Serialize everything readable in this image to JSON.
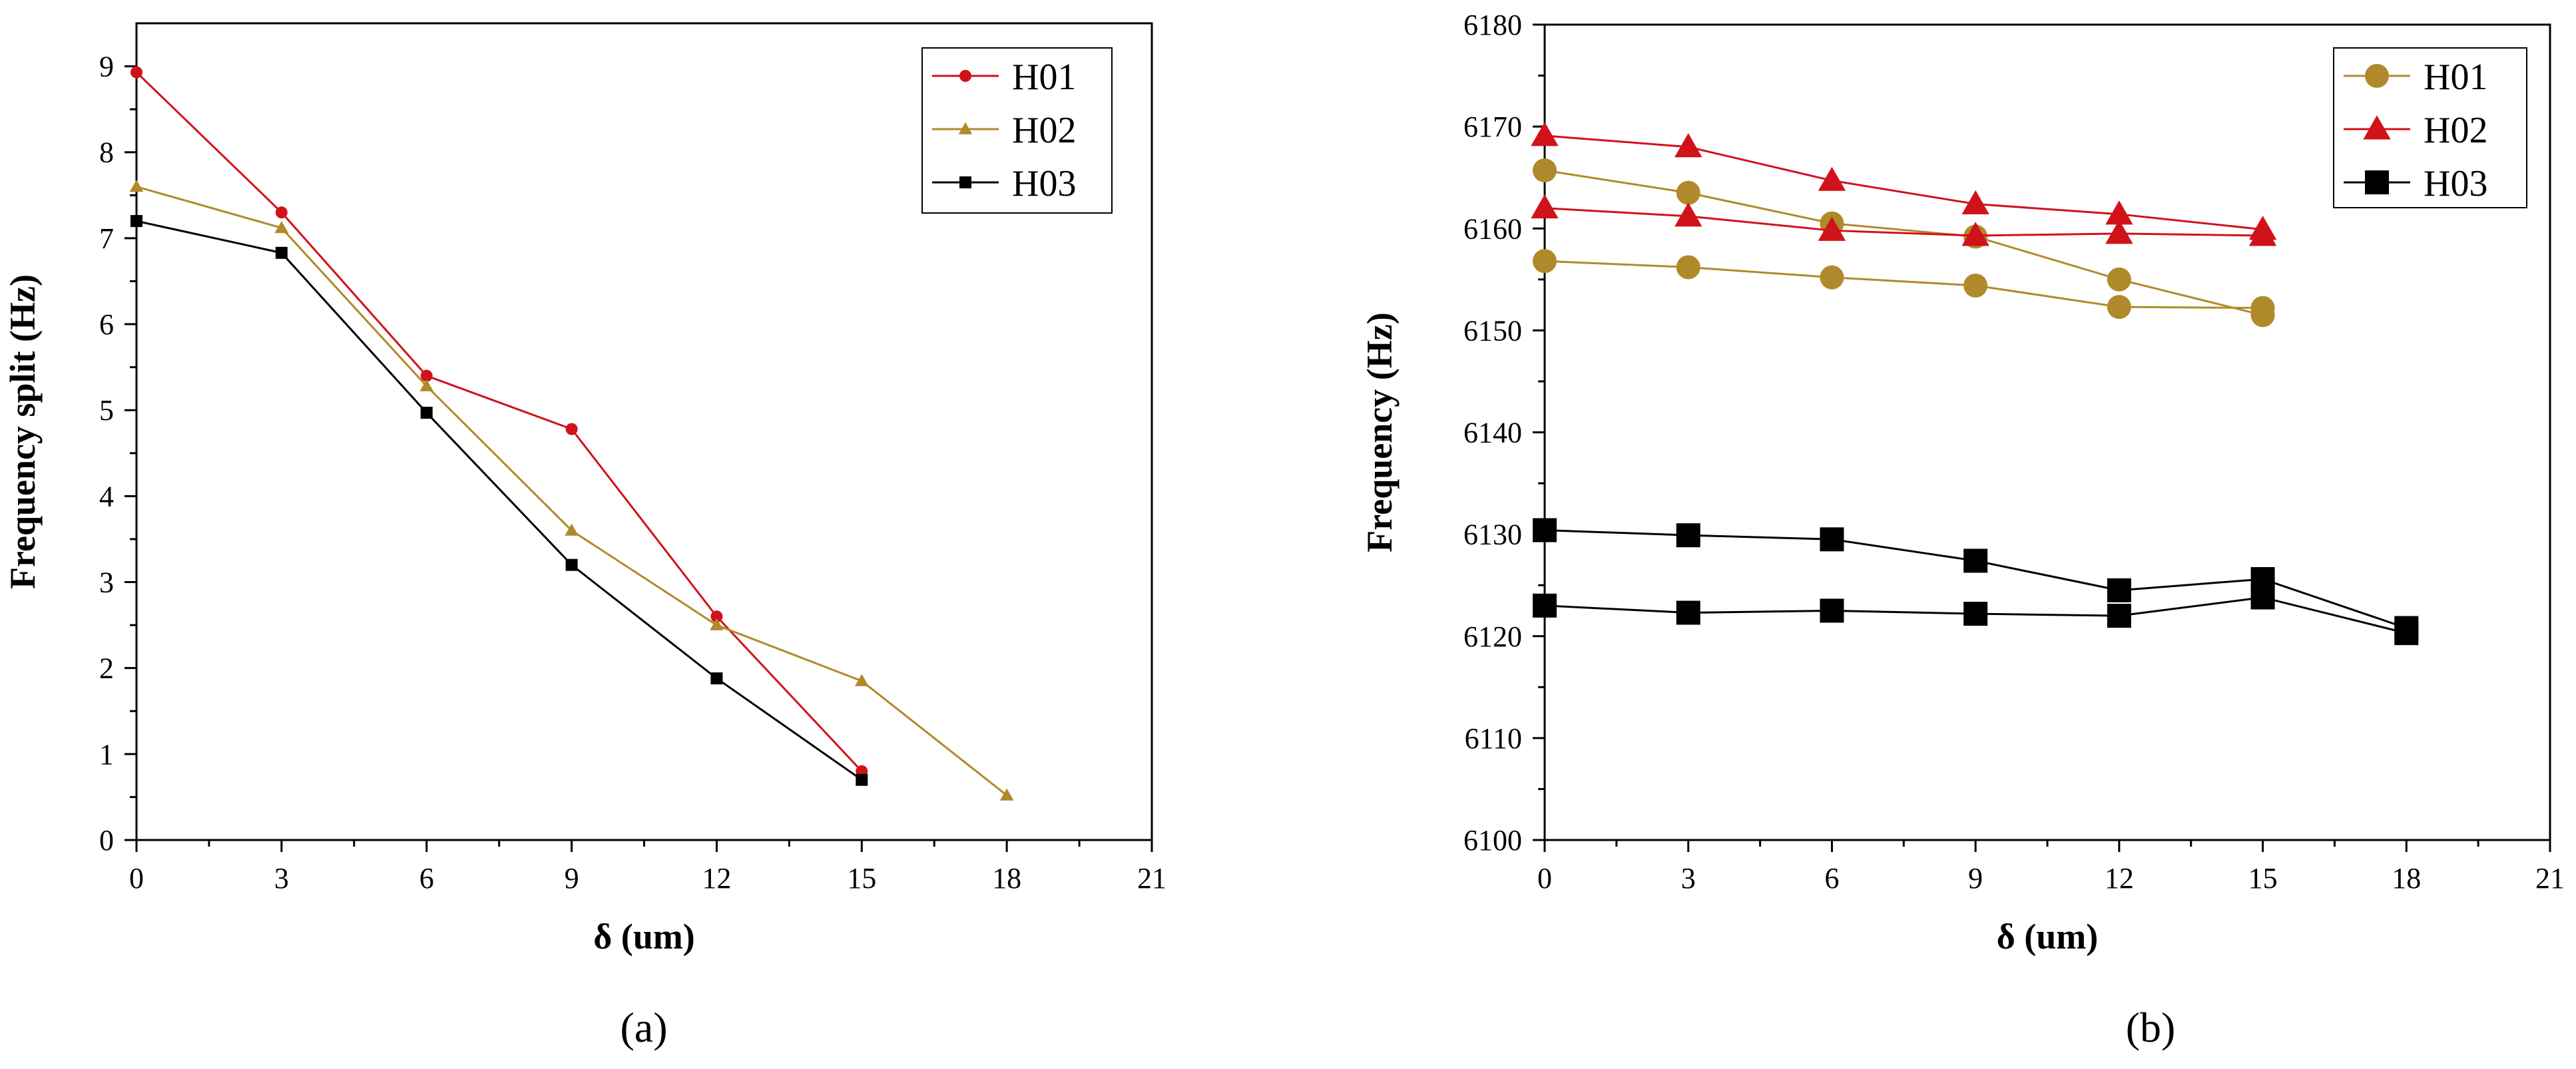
{
  "chart_data": [
    {
      "type": "line",
      "panel_label": "(a)",
      "xlabel": "δ  (um)",
      "ylabel": "Frequency split (Hz)",
      "xlim": [
        0,
        21
      ],
      "ylim": [
        0,
        9.5
      ],
      "xticks": [
        0,
        3,
        6,
        9,
        12,
        15,
        18,
        21
      ],
      "yticks": [
        0,
        1,
        2,
        3,
        4,
        5,
        6,
        7,
        8,
        9
      ],
      "legend_position": "top-right",
      "series": [
        {
          "name": "H01",
          "color": "#d0121b",
          "marker": "circle",
          "x": [
            0,
            3,
            6,
            9,
            12,
            15
          ],
          "values": [
            8.93,
            7.3,
            5.4,
            4.78,
            2.6,
            0.8
          ]
        },
        {
          "name": "H02",
          "color": "#b08a2a",
          "marker": "triangle",
          "x": [
            0,
            3,
            6,
            9,
            12,
            15,
            18
          ],
          "values": [
            7.6,
            7.12,
            5.28,
            3.6,
            2.5,
            1.85,
            0.52
          ]
        },
        {
          "name": "H03",
          "color": "#000000",
          "marker": "square",
          "x": [
            0,
            3,
            6,
            9,
            12,
            15
          ],
          "values": [
            7.2,
            6.83,
            4.97,
            3.2,
            1.88,
            0.7
          ]
        }
      ]
    },
    {
      "type": "line",
      "panel_label": "(b)",
      "xlabel": "δ (um)",
      "ylabel": "Frequency  (Hz)",
      "xlim": [
        0,
        21
      ],
      "ylim": [
        6100,
        6180
      ],
      "xticks": [
        0,
        3,
        6,
        9,
        12,
        15,
        18,
        21
      ],
      "yticks": [
        6100,
        6110,
        6120,
        6130,
        6140,
        6150,
        6160,
        6170,
        6180
      ],
      "legend_position": "top-right",
      "series": [
        {
          "name": "H01",
          "legend": true,
          "color": "#b08a2a",
          "marker": "circle",
          "x": [
            0,
            3,
            6,
            9,
            12,
            15
          ],
          "values": [
            6165.7,
            6163.5,
            6160.5,
            6159.2,
            6155.0,
            6151.5
          ]
        },
        {
          "name": "H01",
          "legend": false,
          "color": "#b08a2a",
          "marker": "circle",
          "x": [
            0,
            3,
            6,
            9,
            12,
            15
          ],
          "values": [
            6156.8,
            6156.2,
            6155.2,
            6154.4,
            6152.3,
            6152.2
          ]
        },
        {
          "name": "H02",
          "legend": true,
          "color": "#d0121b",
          "marker": "triangle",
          "x": [
            0,
            3,
            6,
            9,
            12,
            15
          ],
          "values": [
            6169.1,
            6168.0,
            6164.7,
            6162.4,
            6161.4,
            6159.9
          ]
        },
        {
          "name": "H02",
          "legend": false,
          "color": "#d0121b",
          "marker": "triangle",
          "x": [
            0,
            3,
            6,
            9,
            12,
            15
          ],
          "values": [
            6162.0,
            6161.2,
            6159.8,
            6159.3,
            6159.5,
            6159.3
          ]
        },
        {
          "name": "H03",
          "legend": true,
          "color": "#000000",
          "marker": "square",
          "x": [
            0,
            3,
            6,
            9,
            12,
            15,
            18
          ],
          "values": [
            6130.4,
            6129.9,
            6129.5,
            6127.4,
            6124.5,
            6125.6,
            6120.8
          ]
        },
        {
          "name": "H03",
          "legend": false,
          "color": "#000000",
          "marker": "square",
          "x": [
            0,
            3,
            6,
            9,
            12,
            15,
            18
          ],
          "values": [
            6123.0,
            6122.3,
            6122.5,
            6122.2,
            6122.0,
            6123.8,
            6120.3
          ]
        }
      ]
    }
  ]
}
